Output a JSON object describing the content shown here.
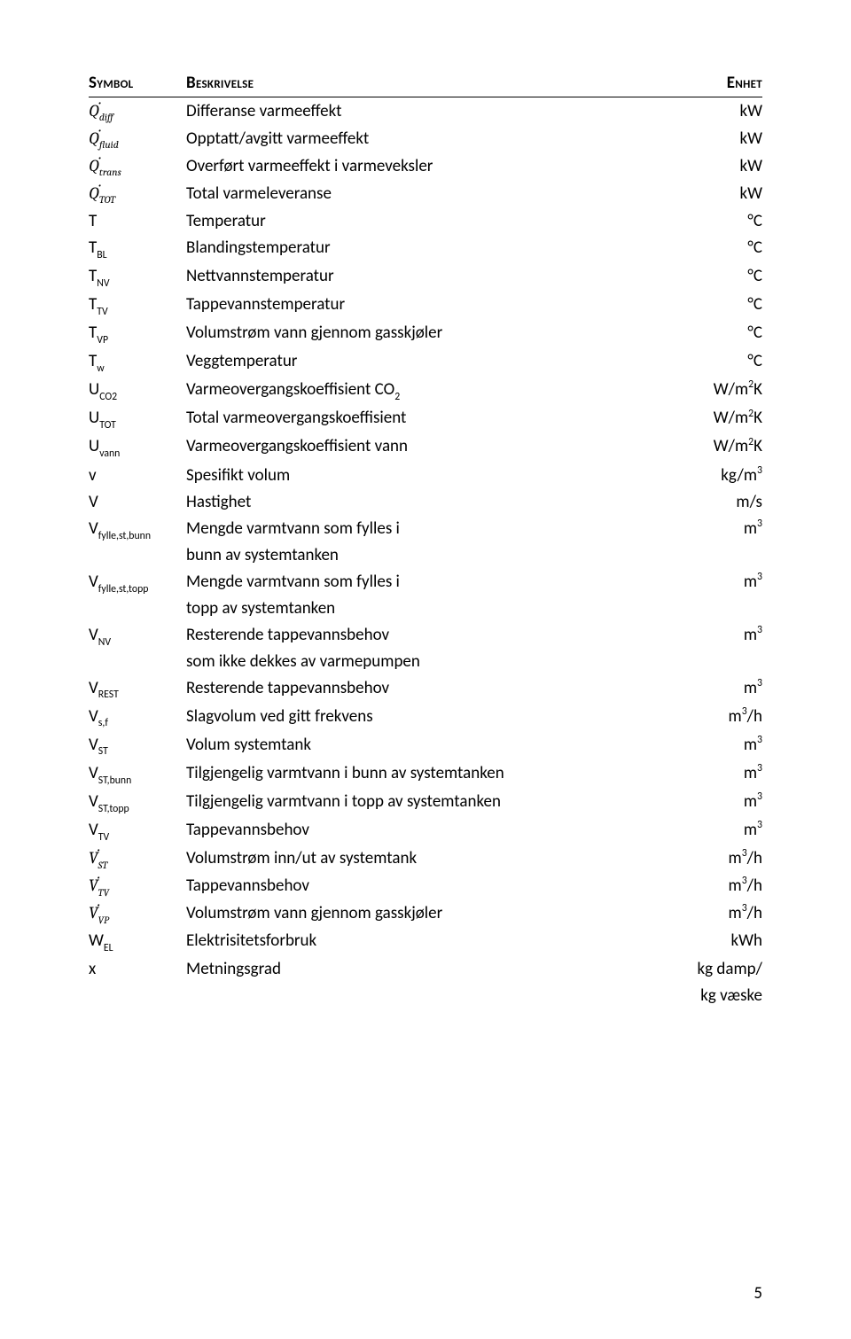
{
  "headers": {
    "symbol": "Symbol",
    "desc": "Beskrivelse",
    "unit": "Enhet"
  },
  "rows": [
    {
      "sym_html": "<span class='math'>Q̇<span class='sub'>diff</span></span>",
      "desc": "Differanse varmeeffekt",
      "unit_html": "kW"
    },
    {
      "sym_html": "<span class='math'>Q̇<span class='sub'>fluid</span></span>",
      "desc": "Opptatt/avgitt varmeeffekt",
      "unit_html": "kW"
    },
    {
      "sym_html": "<span class='math'>Q̇<span class='sub'>trans</span></span>",
      "desc": "Overført varmeeffekt i varmeveksler",
      "unit_html": "kW"
    },
    {
      "sym_html": "<span class='math'>Q̇<span class='sub'>TOT</span></span>",
      "desc": "Total varmeleveranse",
      "unit_html": "kW"
    },
    {
      "sym_html": "T",
      "desc": "Temperatur",
      "unit_html": "°C"
    },
    {
      "sym_html": "T<span class='sub'>BL</span>",
      "desc": "Blandingstemperatur",
      "unit_html": "°C"
    },
    {
      "sym_html": "T<span class='sub'>NV</span>",
      "desc": "Nettvannstemperatur",
      "unit_html": "°C"
    },
    {
      "sym_html": "T<span class='sub'>TV</span>",
      "desc": "Tappevannstemperatur",
      "unit_html": "°C"
    },
    {
      "sym_html": "T<span class='sub'>VP</span>",
      "desc": "Volumstrøm vann gjennom gasskjøler",
      "unit_html": "°C"
    },
    {
      "sym_html": "T<span class='sub'>w</span>",
      "desc": "Veggtemperatur",
      "unit_html": "°C"
    },
    {
      "sym_html": "U<span class='sub'>CO2</span>",
      "desc": "Varmeovergangskoeffisient CO<span class='sub'>2</span>",
      "unit_html": "W/m<span class='sup'>2</span>K"
    },
    {
      "sym_html": "U<span class='sub'>TOT</span>",
      "desc": "Total varmeovergangskoeffisient",
      "unit_html": "W/m<span class='sup'>2</span>K"
    },
    {
      "sym_html": "U<span class='sub'>vann</span>",
      "desc": "Varmeovergangskoeffisient vann",
      "unit_html": "W/m<span class='sup'>2</span>K"
    },
    {
      "sym_html": "v",
      "desc": "Spesifikt volum",
      "unit_html": "kg/m<span class='sup'>3</span>"
    },
    {
      "sym_html": "V",
      "desc": "Hastighet",
      "unit_html": "m/s"
    },
    {
      "sym_html": "V<span class='sub'>fylle,st,bunn</span>",
      "desc": "Mengde varmtvann som fylles i<br>bunn av systemtanken",
      "unit_html": "m<span class='sup'>3</span>"
    },
    {
      "sym_html": "V<span class='sub'>fylle,st,topp</span>",
      "desc": "Mengde varmtvann som fylles i<br>topp av systemtanken",
      "unit_html": "m<span class='sup'>3</span>"
    },
    {
      "sym_html": "V<span class='sub'>NV</span>",
      "desc": "Resterende tappevannsbehov<br>som ikke dekkes av varmepumpen",
      "unit_html": "m<span class='sup'>3</span>"
    },
    {
      "sym_html": "V<span class='sub'>REST</span>",
      "desc": "Resterende tappevannsbehov",
      "unit_html": "m<span class='sup'>3</span>"
    },
    {
      "sym_html": "V<span class='sub'>s,f</span>",
      "desc": "Slagvolum ved gitt frekvens",
      "unit_html": "m<span class='sup'>3</span>/h"
    },
    {
      "sym_html": "V<span class='sub'>ST</span>",
      "desc": "Volum systemtank",
      "unit_html": "m<span class='sup'>3</span>"
    },
    {
      "sym_html": "V<span class='sub'>ST,bunn</span>",
      "desc": "Tilgjengelig varmtvann i bunn av systemtanken",
      "unit_html": "m<span class='sup'>3</span>"
    },
    {
      "sym_html": "V<span class='sub'>ST,topp</span>",
      "desc": "Tilgjengelig varmtvann i topp av systemtanken",
      "unit_html": "m<span class='sup'>3</span>"
    },
    {
      "sym_html": "V<span class='sub'>TV</span>",
      "desc": "Tappevannsbehov",
      "unit_html": "m<span class='sup'>3</span>"
    },
    {
      "sym_html": "<span class='math'>V̇<span class='sub'>ST</span></span>",
      "desc": "Volumstrøm inn/ut av systemtank",
      "unit_html": "m<span class='sup'>3</span>/h"
    },
    {
      "sym_html": "<span class='math'>V̇<span class='sub'>TV</span></span>",
      "desc": "Tappevannsbehov",
      "unit_html": "m<span class='sup'>3</span>/h"
    },
    {
      "sym_html": "<span class='math'>V̇<span class='sub'>VP</span></span>",
      "desc": "Volumstrøm vann gjennom gasskjøler",
      "unit_html": "m<span class='sup'>3</span>/h"
    },
    {
      "sym_html": "W<span class='sub'>EL</span>",
      "desc": "Elektrisitetsforbruk",
      "unit_html": "kWh"
    },
    {
      "sym_html": "x",
      "desc": "Metningsgrad",
      "unit_html": "kg damp/<br>kg væske"
    }
  ],
  "pagenum": "5",
  "colors": {
    "text": "#000000",
    "bg": "#ffffff",
    "rule": "#000000"
  }
}
